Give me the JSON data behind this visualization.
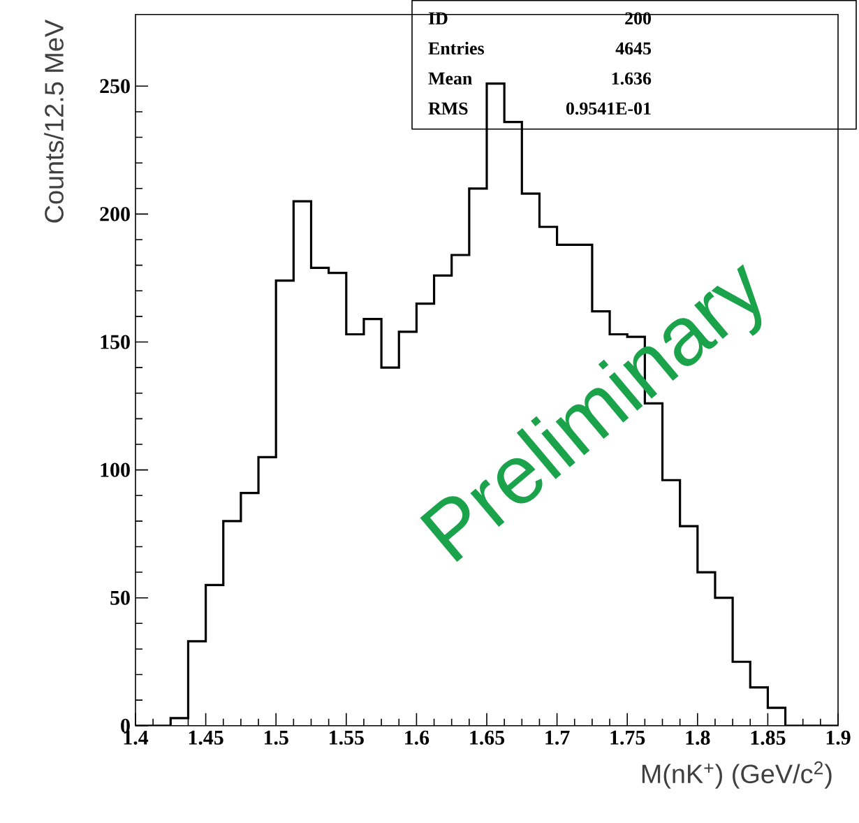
{
  "chart_data": {
    "type": "histogram",
    "xlabel": "M(nK$^{+}$) (GeV/c$^{2}$)",
    "ylabel": "Counts/12.5 MeV",
    "bins": [
      1.4,
      1.4125,
      1.425,
      1.4375,
      1.45,
      1.4625,
      1.475,
      1.4875,
      1.5,
      1.5125,
      1.525,
      1.5375,
      1.55,
      1.5625,
      1.575,
      1.5875,
      1.6,
      1.6125,
      1.625,
      1.6375,
      1.65,
      1.6625,
      1.675,
      1.6875,
      1.7,
      1.7125,
      1.725,
      1.7375,
      1.75,
      1.7625,
      1.775,
      1.7875,
      1.8,
      1.8125,
      1.825,
      1.8375,
      1.85,
      1.8625,
      1.875,
      1.8875,
      1.9
    ],
    "values": [
      0,
      0,
      3,
      33,
      55,
      80,
      91,
      105,
      174,
      205,
      179,
      177,
      153,
      159,
      140,
      154,
      165,
      176,
      184,
      210,
      251,
      236,
      208,
      195,
      188,
      188,
      162,
      153,
      152,
      126,
      96,
      78,
      60,
      50,
      25,
      15,
      7,
      0,
      0,
      0
    ],
    "xlim": [
      1.4,
      1.9
    ],
    "ylim": [
      0,
      278
    ],
    "xticks": [
      1.4,
      1.45,
      1.5,
      1.55,
      1.6,
      1.65,
      1.7,
      1.75,
      1.8,
      1.85,
      1.9
    ],
    "yticks": [
      0,
      50,
      100,
      150,
      200,
      250
    ],
    "grid": false,
    "annotations": [
      "ID",
      "200",
      "Entries",
      "4645",
      "Mean",
      "1.636",
      "RMS",
      "0.9541E-01",
      "Preliminary"
    ]
  }
}
